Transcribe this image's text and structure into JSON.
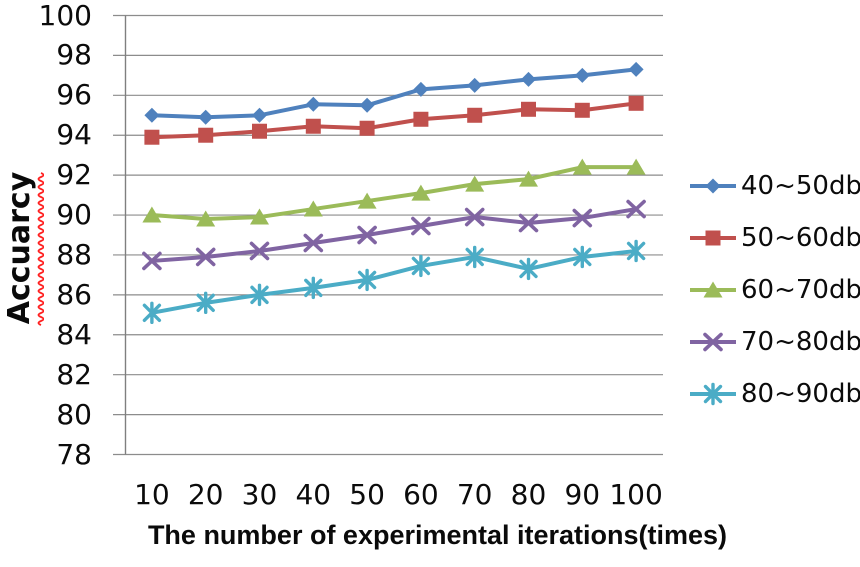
{
  "chart_data": {
    "type": "line",
    "title": "",
    "xlabel": "The number of experimental iterations(times)",
    "ylabel": "Accuarcy",
    "categories": [
      "10",
      "20",
      "30",
      "40",
      "50",
      "60",
      "70",
      "80",
      "90",
      "100"
    ],
    "series": [
      {
        "name": "40~50db",
        "color": "#4F81BD",
        "marker": "diamond",
        "values": [
          95.0,
          94.9,
          95.0,
          95.55,
          95.5,
          96.3,
          96.5,
          96.8,
          97.0,
          97.3
        ]
      },
      {
        "name": "50~60db",
        "color": "#C0504D",
        "marker": "square",
        "values": [
          93.9,
          94.0,
          94.2,
          94.45,
          94.35,
          94.8,
          95.0,
          95.3,
          95.25,
          95.6
        ]
      },
      {
        "name": "60~70db",
        "color": "#9BBB59",
        "marker": "triangle",
        "values": [
          90.0,
          89.8,
          89.9,
          90.3,
          90.7,
          91.1,
          91.55,
          91.8,
          92.4,
          92.4
        ]
      },
      {
        "name": "70~80db",
        "color": "#8064A2",
        "marker": "x",
        "values": [
          87.7,
          87.9,
          88.2,
          88.6,
          89.0,
          89.45,
          89.9,
          89.6,
          89.85,
          90.3
        ]
      },
      {
        "name": "80~90db",
        "color": "#4BACC6",
        "marker": "asterisk",
        "values": [
          85.1,
          85.6,
          86.0,
          86.35,
          86.75,
          87.45,
          87.9,
          87.3,
          87.9,
          88.2
        ]
      }
    ],
    "ylim": [
      78,
      100
    ],
    "ytick_step": 2,
    "yticks": [
      100,
      98,
      96,
      94,
      92,
      90,
      88,
      86,
      84,
      82,
      80,
      78
    ],
    "grid": "horizontal",
    "legend_position": "right",
    "colors": {
      "gridline": "#8c8c8c",
      "axis_line": "#7f7f7f",
      "text": "#0b0b0b",
      "spellcheck_squiggle": "#ff1f1f",
      "background": "#ffffff"
    }
  }
}
